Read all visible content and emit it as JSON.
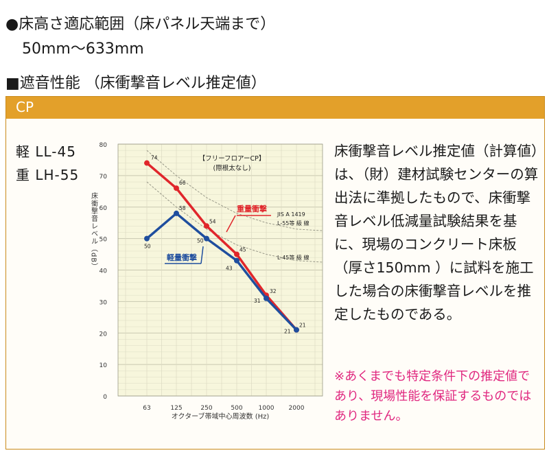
{
  "header": {
    "range_title": "●床高さ適応範囲（床パネル天端まで）",
    "range_value": "50mm〜633mm",
    "section_title": "■遮音性能 （床衝撃音レベル推定値）"
  },
  "panel": {
    "label": "CP",
    "ratings": [
      "軽 LL-45",
      "重 LH-55"
    ],
    "description": "床衝撃音レベル推定値（計算値）は、（財）建材試験センターの算出法に準拠したもので、床衝撃音レベル低減量試験結果を基に、現場のコンクリート床板（厚さ150mm ）に試料を施工した場合の床衝撃音レベルを推定したものである。",
    "note": "※あくまでも特定条件下の推定値であり、現場性能を保証するものではありません。"
  },
  "colors": {
    "heavy": "#e0262b",
    "light": "#1f4e9e",
    "plot_bg": "#f7f6dc",
    "accent": "#e3a02a",
    "note": "#e0277f"
  },
  "chart_data": {
    "type": "line",
    "title": "【フリーフロアーCP】",
    "subtitle": "(際根太なし)",
    "xlabel": "オクターブ帯域中心周波数 (Hz)",
    "ylabel": "床衝撃音レベル（dB）",
    "categories": [
      "63",
      "125",
      "250",
      "500",
      "1000",
      "2000"
    ],
    "ylim": [
      0,
      80
    ],
    "yticks": [
      0,
      10,
      20,
      30,
      40,
      50,
      60,
      70,
      80
    ],
    "grid": true,
    "series": [
      {
        "name": "重量衝撃",
        "color": "#e0262b",
        "values": [
          74,
          66,
          54,
          45,
          32,
          21
        ]
      },
      {
        "name": "軽量衝撃",
        "color": "#1f4e9e",
        "values": [
          50,
          58,
          50,
          43,
          31,
          21
        ]
      }
    ],
    "reference_curves": [
      {
        "name": "L-55等 級 線",
        "standard": "JIS A 1419",
        "values": [
          78,
          70,
          63,
          58,
          55,
          53
        ]
      },
      {
        "name": "L-45等 級 線",
        "values": [
          68,
          60,
          53,
          48,
          45,
          43
        ]
      }
    ]
  }
}
